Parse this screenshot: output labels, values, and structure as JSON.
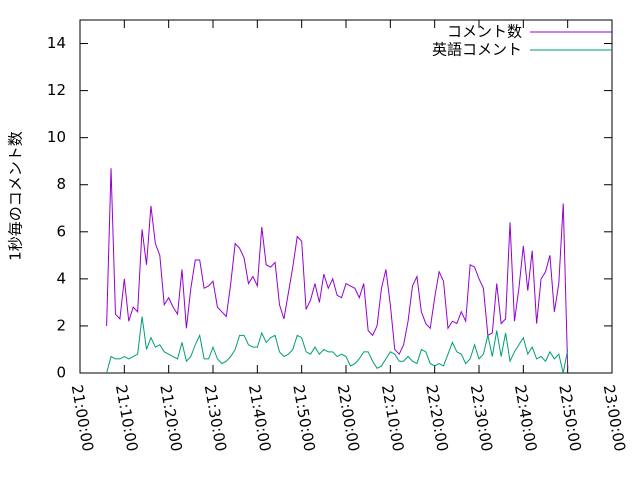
{
  "chart_data": {
    "type": "line",
    "ylabel": "1秒毎のコメント数",
    "xlim": [
      "21:00:00",
      "23:00:00"
    ],
    "xticks": [
      "21:00:00",
      "21:10:00",
      "21:20:00",
      "21:30:00",
      "21:40:00",
      "21:50:00",
      "22:00:00",
      "22:10:00",
      "22:20:00",
      "22:30:00",
      "22:40:00",
      "22:50:00",
      "23:00:00"
    ],
    "ylim": [
      0,
      15
    ],
    "yticks": [
      0,
      2,
      4,
      6,
      8,
      10,
      12,
      14
    ],
    "legend": "top-right",
    "x": [
      "21:06:00",
      "21:07:00",
      "21:08:00",
      "21:09:00",
      "21:10:00",
      "21:11:00",
      "21:12:00",
      "21:13:00",
      "21:14:00",
      "21:15:00",
      "21:16:00",
      "21:17:00",
      "21:18:00",
      "21:19:00",
      "21:20:00",
      "21:21:00",
      "21:22:00",
      "21:23:00",
      "21:24:00",
      "21:25:00",
      "21:26:00",
      "21:27:00",
      "21:28:00",
      "21:29:00",
      "21:30:00",
      "21:31:00",
      "21:32:00",
      "21:33:00",
      "21:34:00",
      "21:35:00",
      "21:36:00",
      "21:37:00",
      "21:38:00",
      "21:39:00",
      "21:40:00",
      "21:41:00",
      "21:42:00",
      "21:43:00",
      "21:44:00",
      "21:45:00",
      "21:46:00",
      "21:47:00",
      "21:48:00",
      "21:49:00",
      "21:50:00",
      "21:51:00",
      "21:52:00",
      "21:53:00",
      "21:54:00",
      "21:55:00",
      "21:56:00",
      "21:57:00",
      "21:58:00",
      "21:59:00",
      "22:00:00",
      "22:01:00",
      "22:02:00",
      "22:03:00",
      "22:04:00",
      "22:05:00",
      "22:06:00",
      "22:07:00",
      "22:08:00",
      "22:09:00",
      "22:10:00",
      "22:11:00",
      "22:12:00",
      "22:13:00",
      "22:14:00",
      "22:15:00",
      "22:16:00",
      "22:17:00",
      "22:18:00",
      "22:19:00",
      "22:20:00",
      "22:21:00",
      "22:22:00",
      "22:23:00",
      "22:24:00",
      "22:25:00",
      "22:26:00",
      "22:27:00",
      "22:28:00",
      "22:29:00",
      "22:30:00",
      "22:31:00",
      "22:32:00",
      "22:33:00",
      "22:34:00",
      "22:35:00",
      "22:36:00",
      "22:37:00",
      "22:38:00",
      "22:39:00",
      "22:40:00",
      "22:41:00",
      "22:42:00",
      "22:43:00",
      "22:44:00",
      "22:45:00",
      "22:46:00",
      "22:47:00",
      "22:48:00",
      "22:49:00",
      "22:50:00"
    ],
    "series": [
      {
        "name": "コメント数",
        "color": "#9400d3",
        "values": [
          2.0,
          8.7,
          2.5,
          2.3,
          4.0,
          2.2,
          2.8,
          2.6,
          6.1,
          4.6,
          7.1,
          5.5,
          5.0,
          2.9,
          3.2,
          2.8,
          2.5,
          4.4,
          1.9,
          3.6,
          4.8,
          4.8,
          3.6,
          3.7,
          3.9,
          2.8,
          2.6,
          2.4,
          3.8,
          5.5,
          5.3,
          4.9,
          3.8,
          4.1,
          3.7,
          6.2,
          4.6,
          4.5,
          4.7,
          2.9,
          2.3,
          3.4,
          4.5,
          5.8,
          5.6,
          2.7,
          3.1,
          3.8,
          3.0,
          4.2,
          3.6,
          4.0,
          3.3,
          3.2,
          3.8,
          3.7,
          3.6,
          3.2,
          3.8,
          1.8,
          1.6,
          2.0,
          3.6,
          4.4,
          2.9,
          1.0,
          0.8,
          1.2,
          2.2,
          3.7,
          4.1,
          2.6,
          2.1,
          1.9,
          3.2,
          4.3,
          3.9,
          1.9,
          2.2,
          2.1,
          2.6,
          2.2,
          4.6,
          4.5,
          4.0,
          3.6,
          1.6,
          1.7,
          3.8,
          2.1,
          2.3,
          6.4,
          2.2,
          3.6,
          5.4,
          3.5,
          5.2,
          2.1,
          4.0,
          4.3,
          5.0,
          2.6,
          3.8,
          7.2,
          0.2
        ]
      },
      {
        "name": "英語コメント",
        "color": "#009e73",
        "values": [
          0.0,
          0.7,
          0.6,
          0.6,
          0.7,
          0.6,
          0.7,
          0.8,
          2.4,
          1.0,
          1.5,
          1.1,
          1.2,
          0.9,
          0.8,
          0.7,
          0.6,
          1.3,
          0.5,
          0.7,
          1.2,
          1.6,
          0.6,
          0.6,
          1.1,
          0.6,
          0.4,
          0.5,
          0.7,
          1.0,
          1.6,
          1.6,
          1.2,
          1.1,
          1.1,
          1.7,
          1.3,
          1.5,
          1.6,
          0.9,
          0.7,
          0.8,
          1.0,
          1.6,
          1.5,
          0.9,
          0.8,
          1.1,
          0.8,
          1.0,
          0.9,
          0.9,
          0.7,
          0.8,
          0.7,
          0.3,
          0.4,
          0.6,
          0.9,
          0.9,
          0.5,
          0.2,
          0.3,
          0.6,
          0.9,
          0.8,
          0.5,
          0.5,
          0.7,
          0.5,
          0.4,
          1.0,
          0.9,
          0.4,
          0.3,
          0.4,
          0.3,
          0.8,
          1.3,
          0.9,
          0.8,
          0.4,
          0.6,
          1.2,
          0.6,
          0.8,
          1.6,
          0.7,
          1.8,
          0.7,
          1.7,
          0.5,
          0.9,
          1.2,
          1.5,
          0.8,
          1.1,
          0.6,
          0.7,
          0.5,
          0.9,
          0.6,
          0.8,
          0.0,
          1.0
        ]
      }
    ]
  }
}
